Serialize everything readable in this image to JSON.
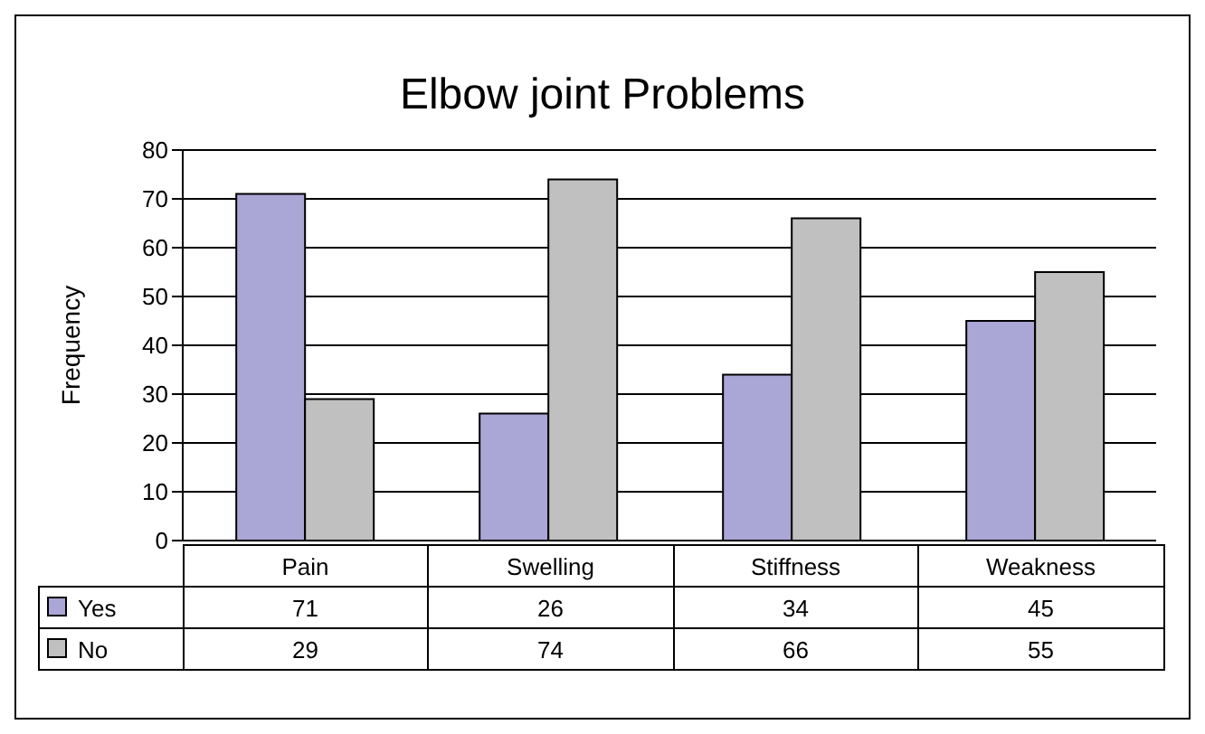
{
  "chart_data": {
    "type": "bar",
    "title": "Elbow joint Problems",
    "ylabel": "Frequency",
    "categories": [
      "Pain",
      "Swelling",
      "Stiffness",
      "Weakness"
    ],
    "series": [
      {
        "name": "Yes",
        "color": "#aaa6d6",
        "values": [
          71,
          26,
          34,
          45
        ]
      },
      {
        "name": "No",
        "color": "#c0c0c0",
        "values": [
          29,
          74,
          66,
          55
        ]
      }
    ],
    "ylim": [
      0,
      80
    ],
    "yticks": [
      0,
      10,
      20,
      30,
      40,
      50,
      60,
      70,
      80
    ],
    "grid": "y",
    "legend": "bottom",
    "data_labels": true
  }
}
